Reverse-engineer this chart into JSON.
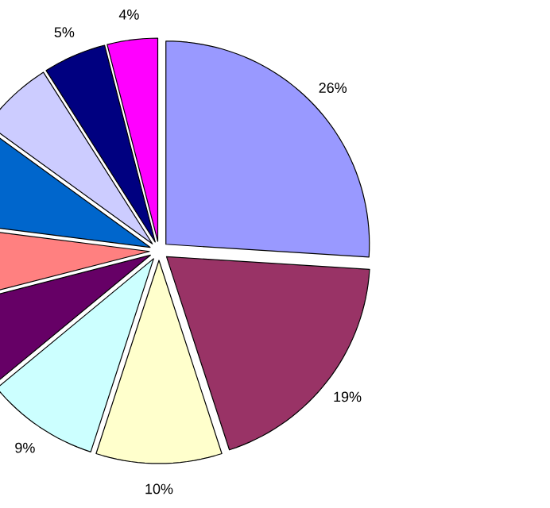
{
  "chart_data": {
    "type": "pie",
    "categories": [
      null,
      null,
      null,
      null,
      null,
      null,
      null,
      null,
      null,
      null
    ],
    "values": [
      26,
      19,
      10,
      9,
      7,
      6,
      8,
      6,
      5,
      4
    ],
    "colors": [
      "#9999ff",
      "#993366",
      "#ffffcc",
      "#ccffff",
      "#660066",
      "#ff8080",
      "#0066cc",
      "#ccccff",
      "#000080",
      "#ff00ff"
    ],
    "value_labels": [
      "26%",
      "19%",
      "10%",
      "9%",
      null,
      null,
      null,
      null,
      "5%",
      "4%"
    ]
  }
}
